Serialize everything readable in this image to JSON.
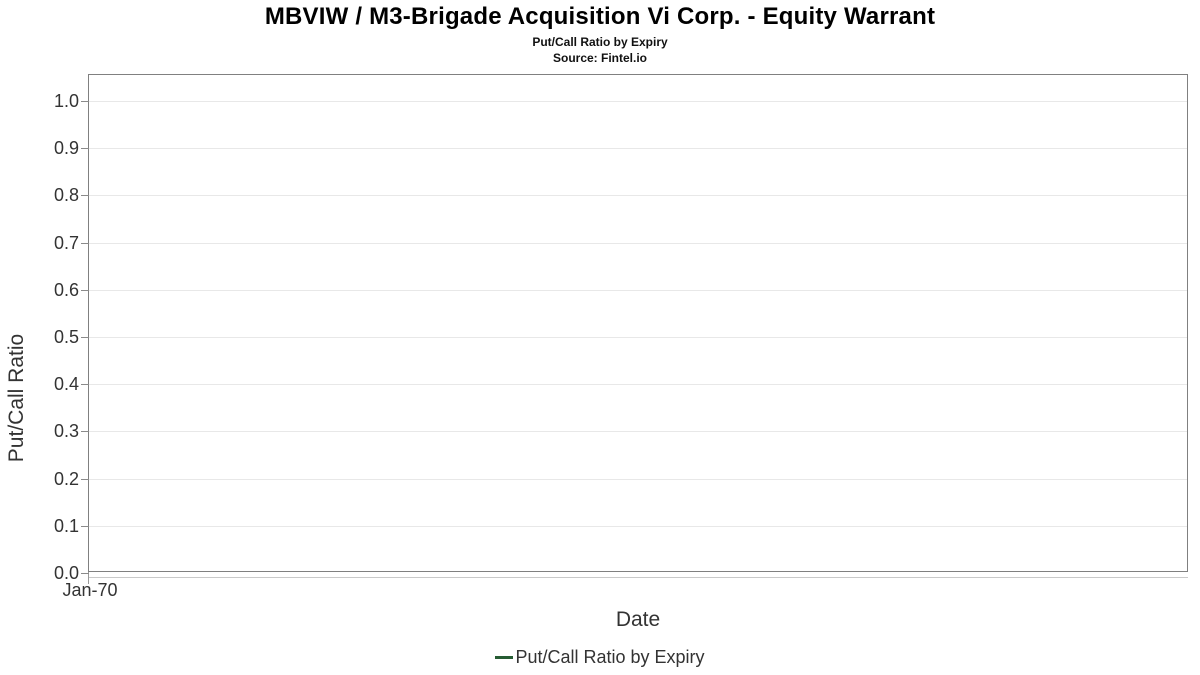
{
  "header": {
    "title": "MBVIW / M3-Brigade Acquisition Vi Corp. - Equity Warrant",
    "subtitle": "Put/Call Ratio by Expiry",
    "source": "Source: Fintel.io"
  },
  "chart_data": {
    "type": "line",
    "title": "MBVIW / M3-Brigade Acquisition Vi Corp. - Equity Warrant",
    "subtitle": "Put/Call Ratio by Expiry",
    "source": "Source: Fintel.io",
    "xlabel": "Date",
    "ylabel": "Put/Call Ratio",
    "x_ticks": [
      "Jan-70"
    ],
    "y_ticks": [
      0.0,
      0.1,
      0.2,
      0.3,
      0.4,
      0.5,
      0.6,
      0.7,
      0.8,
      0.9,
      1.0
    ],
    "ylim": [
      0,
      1.055
    ],
    "grid": "horizontal",
    "legend_position": "bottom-center",
    "series": [
      {
        "name": "Put/Call Ratio by Expiry",
        "color": "#265c33",
        "x": [],
        "values": []
      }
    ]
  },
  "colors": {
    "series_green": "#265c33",
    "plot_border": "#808080",
    "gridline": "#e8e8e8",
    "axis_text": "#333333",
    "title_text": "#000000"
  }
}
